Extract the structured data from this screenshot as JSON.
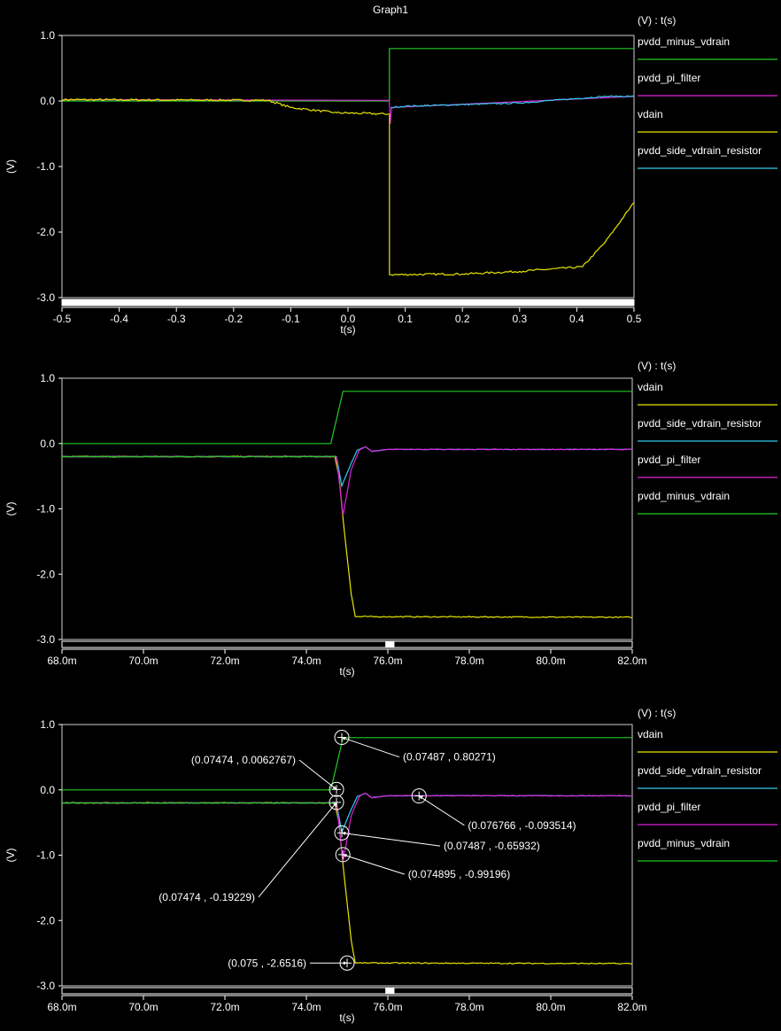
{
  "title": "Graph1",
  "chart_data": [
    {
      "type": "line",
      "legend_title": "(V) : t(s)",
      "xlabel": "t(s)",
      "ylabel": "(V)",
      "xlim": [
        -0.5,
        0.5
      ],
      "ylim": [
        -3.0,
        1.0
      ],
      "xticks": [
        -0.5,
        -0.4,
        -0.3,
        -0.2,
        -0.1,
        0.0,
        0.1,
        0.2,
        0.3,
        0.4,
        0.5
      ],
      "xtick_labels": [
        "-0.5",
        "-0.4",
        "-0.3",
        "-0.2",
        "-0.1",
        "0.0",
        "0.1",
        "0.2",
        "0.3",
        "0.4",
        "0.5"
      ],
      "yticks": [
        1.0,
        0.0,
        -1.0,
        -2.0,
        -3.0
      ],
      "ytick_labels": [
        "1.0",
        "0.0",
        "-1.0",
        "-2.0",
        "-3.0"
      ],
      "scrollbar": {
        "thumb_start": 0.0,
        "thumb_end": 1.0
      },
      "series": [
        {
          "name": "pvdd_minus_vdrain",
          "color": "#22cc22",
          "noise": 0,
          "points": [
            [
              -0.5,
              0.0
            ],
            [
              0.0725,
              0.0
            ],
            [
              0.0725,
              0.8
            ],
            [
              0.5,
              0.8
            ]
          ]
        },
        {
          "name": "pvdd_pi_filter",
          "color": "#dd22dd",
          "noise": 0,
          "points": [
            [
              -0.5,
              0.02
            ],
            [
              0.072,
              0.01
            ],
            [
              0.074,
              -0.35
            ],
            [
              0.076,
              -0.1
            ],
            [
              0.5,
              0.07
            ]
          ]
        },
        {
          "name": "vdain",
          "color": "#e6e600",
          "noise": 0.015,
          "points": [
            [
              -0.5,
              0.02
            ],
            [
              -0.14,
              0.01
            ],
            [
              -0.1,
              -0.1
            ],
            [
              -0.02,
              -0.18
            ],
            [
              0.07,
              -0.2
            ],
            [
              0.0725,
              -0.2
            ],
            [
              0.0725,
              -2.65
            ],
            [
              0.2,
              -2.64
            ],
            [
              0.3,
              -2.6
            ],
            [
              0.41,
              -2.53
            ],
            [
              0.45,
              -2.15
            ],
            [
              0.5,
              -1.55
            ]
          ]
        },
        {
          "name": "pvdd_side_vdrain_resistor",
          "color": "#33ccee",
          "noise": 0.01,
          "points": [
            [
              0.0745,
              -0.1
            ],
            [
              0.1,
              -0.08
            ],
            [
              0.3,
              -0.03
            ],
            [
              0.45,
              0.07
            ],
            [
              0.5,
              0.07
            ]
          ]
        }
      ]
    },
    {
      "type": "line",
      "legend_title": "(V) : t(s)",
      "xlabel": "t(s)",
      "ylabel": "(V)",
      "xlim": [
        68.0,
        82.0
      ],
      "ylim": [
        -3.0,
        1.0
      ],
      "xticks": [
        68,
        70,
        72,
        74,
        76,
        78,
        80,
        82
      ],
      "xtick_labels": [
        "68.0m",
        "70.0m",
        "72.0m",
        "74.0m",
        "76.0m",
        "78.0m",
        "80.0m",
        "82.0m"
      ],
      "yticks": [
        1.0,
        0.0,
        -1.0,
        -2.0,
        -3.0
      ],
      "ytick_labels": [
        "1.0",
        "0.0",
        "-1.0",
        "-2.0",
        "-3.0"
      ],
      "scrollbar": {
        "thumb_start": 0.567,
        "thumb_end": 0.583
      },
      "series": [
        {
          "name": "vdain",
          "color": "#e6e600",
          "noise": 0.008,
          "points": [
            [
              68,
              -0.2
            ],
            [
              74.7,
              -0.2
            ],
            [
              74.8,
              -0.5
            ],
            [
              74.9,
              -1.15
            ],
            [
              75.1,
              -2.3
            ],
            [
              75.2,
              -2.65
            ],
            [
              82,
              -2.66
            ]
          ]
        },
        {
          "name": "pvdd_side_vdrain_resistor",
          "color": "#33ccee",
          "noise": 0.004,
          "points": [
            [
              68,
              -0.2
            ],
            [
              74.74,
              -0.2
            ],
            [
              74.87,
              -0.65
            ],
            [
              75.1,
              -0.3
            ],
            [
              75.25,
              -0.1
            ],
            [
              75.45,
              -0.05
            ],
            [
              75.6,
              -0.12
            ],
            [
              76,
              -0.09
            ],
            [
              82,
              -0.09
            ]
          ]
        },
        {
          "name": "pvdd_pi_filter",
          "color": "#dd22dd",
          "noise": 0.006,
          "points": [
            [
              68,
              -0.2
            ],
            [
              74.74,
              -0.2
            ],
            [
              74.9,
              -1.1
            ],
            [
              75.1,
              -0.4
            ],
            [
              75.3,
              -0.1
            ],
            [
              75.45,
              -0.05
            ],
            [
              75.6,
              -0.12
            ],
            [
              76,
              -0.09
            ],
            [
              82,
              -0.09
            ]
          ]
        },
        {
          "name": "pvdd_minus_vdrain",
          "color": "#22cc22",
          "noise": 0,
          "points": [
            [
              68,
              0.0
            ],
            [
              74.6,
              0.0
            ],
            [
              74.9,
              0.8
            ],
            [
              82,
              0.8
            ]
          ]
        },
        {
          "name": "",
          "color": "#22cc22",
          "noise": 0.006,
          "points": [
            [
              68,
              -0.2
            ],
            [
              74.74,
              -0.2
            ]
          ]
        }
      ]
    },
    {
      "type": "line",
      "legend_title": "(V) : t(s)",
      "xlabel": "t(s)",
      "ylabel": "(V)",
      "xlim": [
        68.0,
        82.0
      ],
      "ylim": [
        -3.0,
        1.0
      ],
      "xticks": [
        68,
        70,
        72,
        74,
        76,
        78,
        80,
        82
      ],
      "xtick_labels": [
        "68.0m",
        "70.0m",
        "72.0m",
        "74.0m",
        "76.0m",
        "78.0m",
        "80.0m",
        "82.0m"
      ],
      "yticks": [
        1.0,
        0.0,
        -1.0,
        -2.0,
        -3.0
      ],
      "ytick_labels": [
        "1.0",
        "0.0",
        "-1.0",
        "-2.0",
        "-3.0"
      ],
      "scrollbar": {
        "thumb_start": 0.567,
        "thumb_end": 0.583
      },
      "series": [
        {
          "name": "vdain",
          "color": "#e6e600",
          "noise": 0.008,
          "points": [
            [
              68,
              -0.2
            ],
            [
              74.7,
              -0.2
            ],
            [
              74.8,
              -0.5
            ],
            [
              74.9,
              -1.15
            ],
            [
              75.1,
              -2.3
            ],
            [
              75.2,
              -2.65
            ],
            [
              82,
              -2.66
            ]
          ]
        },
        {
          "name": "pvdd_side_vdrain_resistor",
          "color": "#33ccee",
          "noise": 0.004,
          "points": [
            [
              68,
              -0.2
            ],
            [
              74.74,
              -0.2
            ],
            [
              74.87,
              -0.65
            ],
            [
              75.1,
              -0.3
            ],
            [
              75.25,
              -0.1
            ],
            [
              75.45,
              -0.05
            ],
            [
              75.6,
              -0.12
            ],
            [
              76,
              -0.09
            ],
            [
              82,
              -0.09
            ]
          ]
        },
        {
          "name": "pvdd_pi_filter",
          "color": "#dd22dd",
          "noise": 0.006,
          "points": [
            [
              68,
              -0.2
            ],
            [
              74.74,
              -0.2
            ],
            [
              74.9,
              -1.1
            ],
            [
              75.1,
              -0.4
            ],
            [
              75.3,
              -0.1
            ],
            [
              75.45,
              -0.05
            ],
            [
              75.6,
              -0.12
            ],
            [
              76,
              -0.09
            ],
            [
              82,
              -0.09
            ]
          ]
        },
        {
          "name": "pvdd_minus_vdrain",
          "color": "#22cc22",
          "noise": 0,
          "points": [
            [
              68,
              0.0
            ],
            [
              74.6,
              0.0
            ],
            [
              74.9,
              0.8
            ],
            [
              82,
              0.8
            ]
          ]
        },
        {
          "name": "",
          "color": "#22cc22",
          "noise": 0.006,
          "points": [
            [
              68,
              -0.2
            ],
            [
              74.74,
              -0.2
            ]
          ]
        }
      ],
      "annotations": [
        {
          "text": "(0.07487 , 0.80271)",
          "x": 74.87,
          "y": 0.80271,
          "label_side": "right",
          "label_dx": 1.5,
          "label_dy": -0.3
        },
        {
          "text": "(0.07474 , 0.0062767)",
          "x": 74.74,
          "y": 0.0062767,
          "label_side": "left",
          "label_dx": -1.0,
          "label_dy": 0.45
        },
        {
          "text": "(0.07474 , -0.19229)",
          "x": 74.74,
          "y": -0.19229,
          "label_side": "left",
          "label_dx": -2.0,
          "label_dy": -1.45
        },
        {
          "text": "(0.07487 , -0.65932)",
          "x": 74.87,
          "y": -0.65932,
          "label_side": "right",
          "label_dx": 2.5,
          "label_dy": -0.2
        },
        {
          "text": "(0.074895 , -0.99196)",
          "x": 74.895,
          "y": -0.99196,
          "label_side": "right",
          "label_dx": 1.6,
          "label_dy": -0.3
        },
        {
          "text": "(0.076766 , -0.093514)",
          "x": 76.766,
          "y": -0.093514,
          "label_side": "right",
          "label_dx": 1.2,
          "label_dy": -0.45
        },
        {
          "text": "(0.075 , -2.6516)",
          "x": 75.0,
          "y": -2.6516,
          "label_side": "left",
          "label_dx": -1.0,
          "label_dy": 0.0
        }
      ]
    }
  ]
}
